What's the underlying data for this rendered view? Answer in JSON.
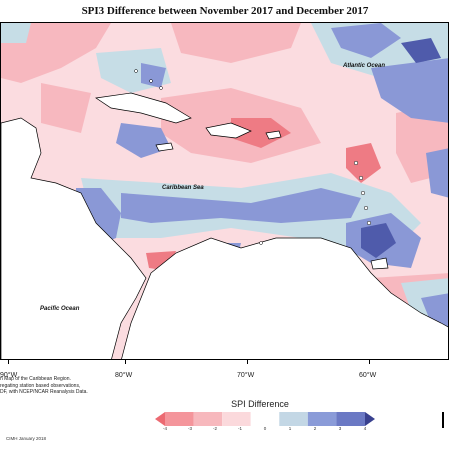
{
  "title": "SPI3 Difference between November 2017 and December 2017",
  "labels": {
    "atlantic": "Atlantic Ocean",
    "caribbean": "Caribbean Sea",
    "pacific": "Pacific Ocean"
  },
  "longitudes": [
    "90°W",
    "80°W",
    "70°W",
    "60°W"
  ],
  "note_lines": [
    "n Map of the Caribbean Region.",
    "regating station based observations,",
    "DF, with NCEP/NCAR Reanalysis Data."
  ],
  "credit": "CIMH January 2018",
  "legend": {
    "title": "SPI Difference",
    "ticks": [
      "-4",
      "-3",
      "-2",
      "-1",
      "0",
      "1",
      "2",
      "3",
      "4"
    ],
    "colors": [
      "#ec6a72",
      "#f4959b",
      "#f7b8bd",
      "#fbd9dc",
      "#ffffff",
      "#c3d7e5",
      "#8a9bd8",
      "#6b79c4",
      "#39418f"
    ]
  },
  "map_colors": {
    "pale_pink": "#fbdce0",
    "pink": "#f7b8bf",
    "red": "#ee7b84",
    "light_blue": "#c6dde6",
    "blue": "#8a98d6",
    "dark_blue": "#4f5bab"
  }
}
